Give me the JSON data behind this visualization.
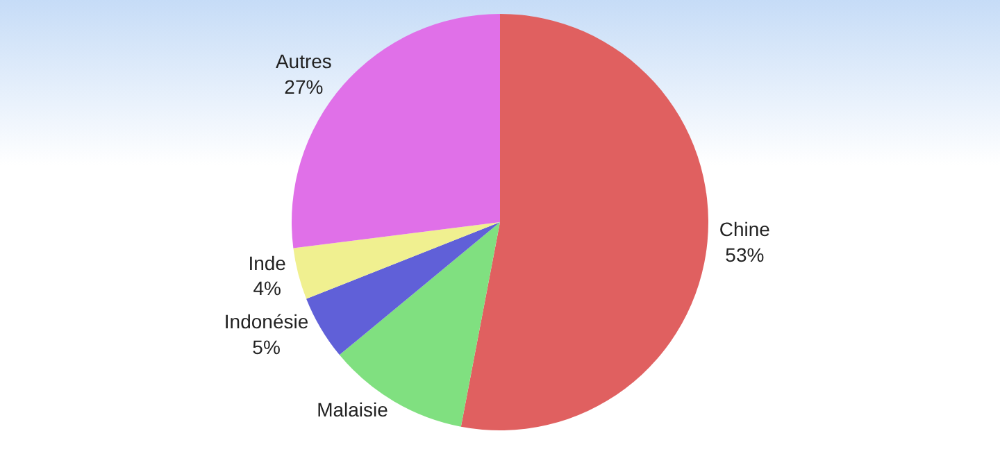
{
  "chart_data": {
    "type": "pie",
    "categories": [
      "Chine",
      "Malaisie",
      "Indonésie",
      "Inde",
      "Autres"
    ],
    "values": [
      53,
      11,
      5,
      4,
      27
    ],
    "value_labels": [
      "53%",
      null,
      "5%",
      "4%",
      "27%"
    ],
    "colors": [
      "#e06060",
      "#80e080",
      "#6060d8",
      "#f0f090",
      "#e070e8"
    ],
    "legend": false
  }
}
